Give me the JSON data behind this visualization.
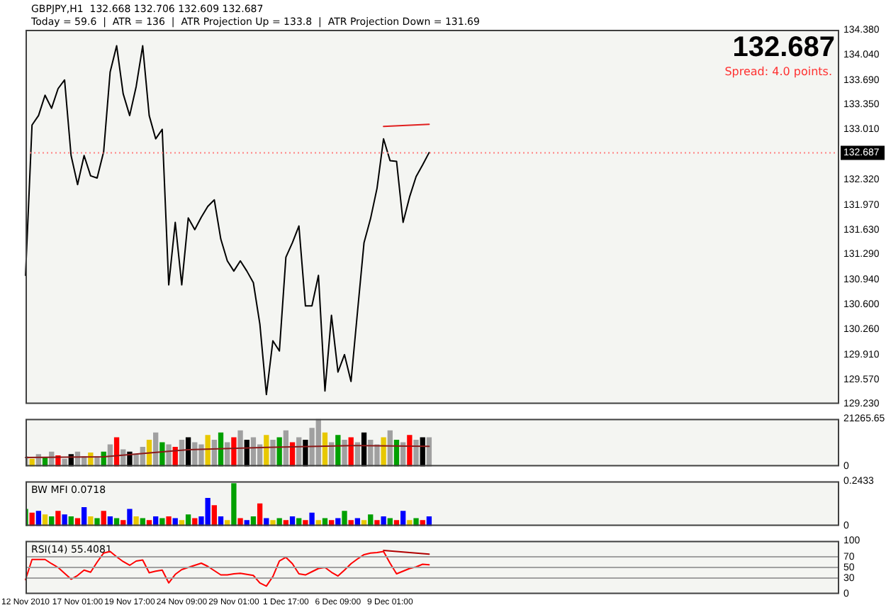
{
  "chart_data": [
    {
      "type": "line",
      "title": "GBPJPY,H1  132.668 132.706 132.609 132.687",
      "subtitle": "Today = 59.6  |  ATR = 136  |  ATR Projection Up = 133.8  |  ATR Projection Down = 131.69",
      "annotations": [
        "132.687",
        "Spread: 4.0 points."
      ],
      "categories": [
        null,
        null,
        null,
        null,
        null,
        null,
        null,
        null,
        null,
        null,
        null,
        null,
        null,
        null,
        null,
        null,
        null,
        null,
        null,
        null,
        null,
        null,
        null,
        null,
        null,
        null,
        null,
        null,
        null,
        null,
        null,
        null,
        null,
        null,
        null,
        null,
        null,
        null,
        null,
        null,
        null,
        null,
        null,
        null,
        null,
        null,
        null,
        null,
        null,
        null,
        null,
        null,
        null,
        null,
        null,
        null,
        null,
        null,
        null,
        null,
        null,
        null,
        null,
        null,
        null,
        null,
        null,
        null,
        null,
        null,
        null,
        null,
        null,
        null,
        null,
        null,
        null,
        null,
        null,
        null,
        null,
        null,
        null,
        null,
        null,
        null,
        null,
        null,
        null,
        null,
        null,
        null,
        null,
        null,
        null,
        null,
        null,
        null,
        null,
        null,
        null,
        null,
        null,
        null,
        null,
        null,
        null,
        null,
        null,
        null,
        null,
        null,
        null,
        null,
        null,
        null,
        null,
        null,
        null,
        null,
        null,
        null,
        null,
        null,
        null,
        null
      ],
      "ylim": [
        129.23,
        134.38
      ],
      "tick_labels": "y",
      "yticks": [
        {
          "value": 129.23,
          "label": "129.230"
        },
        {
          "value": 129.57,
          "label": "129.570"
        },
        {
          "value": 129.91,
          "label": "129.910"
        },
        {
          "value": 130.26,
          "label": "130.260"
        },
        {
          "value": 130.6,
          "label": "130.600"
        },
        {
          "value": 130.94,
          "label": "130.940"
        },
        {
          "value": 131.29,
          "label": "131.290"
        },
        {
          "value": 131.63,
          "label": "131.630"
        },
        {
          "value": 131.97,
          "label": "131.970"
        },
        {
          "value": 132.32,
          "label": "132.320"
        },
        {
          "value": 133.01,
          "label": "133.010"
        },
        {
          "value": 133.35,
          "label": "133.350"
        },
        {
          "value": 133.69,
          "label": "133.690"
        },
        {
          "value": 134.04,
          "label": "134.040"
        },
        {
          "value": 134.38,
          "label": "134.380"
        }
      ],
      "ref_lines": [
        {
          "axis": "y",
          "value": 132.687,
          "label": "132.687",
          "color": "#ff8080",
          "line_style": "dotted"
        }
      ],
      "series": [
        {
          "color": "#000000",
          "values": [
            131.0,
            133.07,
            133.2,
            133.48,
            133.3,
            133.57,
            133.69,
            132.65,
            132.25,
            132.65,
            132.37,
            132.34,
            132.7,
            133.8,
            134.16,
            133.5,
            133.2,
            133.6,
            134.16,
            133.2,
            132.88,
            133.01,
            130.87,
            131.73,
            130.87,
            131.79,
            131.63,
            131.8,
            131.95,
            132.04,
            131.5,
            131.2,
            131.06,
            131.2,
            131.06,
            130.9,
            130.33,
            129.36,
            130.1,
            129.96,
            131.25,
            131.45,
            131.68,
            130.58,
            130.58,
            131.0,
            129.41,
            130.45,
            129.67,
            129.91,
            129.54,
            130.5,
            131.45,
            131.78,
            132.2,
            132.88,
            132.58,
            132.57,
            131.73,
            132.08,
            132.36,
            132.52,
            132.69,
            null,
            null,
            null,
            null,
            null,
            null,
            null,
            null,
            null,
            null,
            null,
            null,
            null,
            null,
            null,
            null,
            null,
            null,
            null,
            null,
            null,
            null,
            null,
            null,
            null,
            null,
            null,
            null,
            null,
            null,
            null,
            null,
            null,
            null,
            null,
            null,
            null,
            null,
            null,
            null,
            null,
            null,
            null,
            null,
            null,
            null,
            null,
            null,
            null,
            null,
            null,
            null,
            null,
            null,
            null,
            null,
            null,
            null,
            null,
            null,
            null,
            null,
            null
          ]
        },
        {
          "type": "line",
          "color": "#e02020",
          "values": [
            null,
            null,
            null,
            null,
            null,
            null,
            null,
            null,
            null,
            null,
            null,
            null,
            null,
            null,
            null,
            null,
            null,
            null,
            null,
            null,
            null,
            null,
            null,
            null,
            null,
            null,
            null,
            null,
            null,
            null,
            null,
            null,
            null,
            null,
            null,
            null,
            null,
            null,
            null,
            null,
            null,
            null,
            null,
            null,
            null,
            null,
            null,
            null,
            null,
            null,
            null,
            null,
            null,
            null,
            null,
            133.05,
            null,
            null,
            null,
            null,
            null,
            null,
            133.08,
            null,
            null,
            null,
            null,
            null,
            null,
            null,
            null,
            null,
            null,
            null,
            null,
            null,
            null,
            null,
            null,
            null,
            null,
            null,
            null,
            null,
            null,
            null,
            null,
            null,
            null,
            null,
            null,
            null,
            null,
            null,
            null,
            null,
            null,
            null,
            null,
            null,
            null,
            null,
            null,
            null,
            null,
            null,
            null,
            null,
            null,
            null,
            null,
            null,
            null,
            null,
            null,
            null,
            null,
            null,
            null,
            null,
            null,
            null,
            null,
            null,
            null,
            null
          ]
        }
      ]
    },
    {
      "type": "bar",
      "categories": [
        null,
        null,
        null,
        null,
        null,
        null,
        null,
        null,
        null,
        null,
        null,
        null,
        null,
        null,
        null,
        null,
        null,
        null,
        null,
        null,
        null,
        null,
        null,
        null,
        null,
        null,
        null,
        null,
        null,
        null,
        null,
        null,
        null,
        null,
        null,
        null,
        null,
        null,
        null,
        null,
        null,
        null,
        null,
        null,
        null,
        null,
        null,
        null,
        null,
        null,
        null,
        null,
        null,
        null,
        null,
        null,
        null,
        null,
        null,
        null,
        null,
        null,
        null,
        null,
        null,
        null,
        null,
        null,
        null,
        null,
        null,
        null,
        null,
        null,
        null,
        null,
        null,
        null,
        null,
        null,
        null,
        null,
        null,
        null,
        null,
        null,
        null,
        null,
        null,
        null,
        null,
        null,
        null,
        null,
        null,
        null,
        null,
        null,
        null,
        null,
        null,
        null,
        null,
        null,
        null,
        null,
        null,
        null,
        null,
        null,
        null,
        null,
        null,
        null,
        null,
        null,
        null,
        null,
        null,
        null,
        null,
        null,
        null,
        null,
        null,
        null
      ],
      "ylim": [
        0,
        21265.65
      ],
      "tick_labels": "y",
      "yticks": [
        0,
        {
          "value": 21265.65,
          "label": "21265.65"
        }
      ],
      "series": [
        {
          "values": [
            4300,
            3200,
            5300,
            3800,
            6400,
            4700,
            3200,
            5300,
            6400,
            4300,
            6000,
            4300,
            6400,
            9600,
            12800,
            7400,
            6400,
            5300,
            8500,
            11700,
            14900,
            10600,
            9600,
            8500,
            11700,
            12800,
            10600,
            9600,
            13800,
            11700,
            14900,
            10600,
            12800,
            15900,
            11700,
            12800,
            9600,
            13800,
            11700,
            12800,
            15900,
            10600,
            12800,
            11700,
            17000,
            21000,
            14900,
            10600,
            13800,
            11700,
            12800,
            10600,
            14900,
            11700,
            9600,
            12800,
            15900,
            11700,
            10600,
            13800,
            11700,
            12800,
            12800,
            null,
            null,
            null,
            null,
            null,
            null,
            null,
            null,
            null,
            null,
            null,
            null,
            null,
            null,
            null,
            null,
            null,
            null,
            null,
            null,
            null,
            null,
            null,
            null,
            null,
            null,
            null,
            null,
            null,
            null,
            null,
            null,
            null,
            null,
            null,
            null,
            null,
            null,
            null,
            null,
            null,
            null,
            null,
            null,
            null,
            null,
            null,
            null,
            null,
            null,
            null,
            null,
            null,
            null,
            null,
            null,
            null,
            null,
            null,
            null,
            null,
            null,
            null
          ],
          "colors": [
            "#a0a0a0",
            "#e8c800",
            "#a0a0a0",
            "#00a000",
            "#a0a0a0",
            "#ff0000",
            "#a0a0a0",
            "#000000",
            "#a0a0a0",
            "#a0a0a0",
            "#e8c800",
            "#a0a0a0",
            "#00a000",
            "#a0a0a0",
            "#ff0000",
            "#a0a0a0",
            "#000000",
            "#a0a0a0",
            "#a0a0a0",
            "#e8c800",
            "#a0a0a0",
            "#00a000",
            "#a0a0a0",
            "#ff0000",
            "#a0a0a0",
            "#000000",
            "#a0a0a0",
            "#a0a0a0",
            "#e8c800",
            "#a0a0a0",
            "#00a000",
            "#a0a0a0",
            "#ff0000",
            "#a0a0a0",
            "#000000",
            "#a0a0a0",
            "#a0a0a0",
            "#e8c800",
            "#a0a0a0",
            "#00a000",
            "#a0a0a0",
            "#ff0000",
            "#a0a0a0",
            "#000000",
            "#a0a0a0",
            "#a0a0a0",
            "#e8c800",
            "#a0a0a0",
            "#00a000",
            "#a0a0a0",
            "#ff0000",
            "#a0a0a0",
            "#000000",
            "#a0a0a0",
            "#a0a0a0",
            "#e8c800",
            "#a0a0a0",
            "#00a000",
            "#a0a0a0",
            "#ff0000",
            "#a0a0a0",
            "#000000",
            "#a0a0a0",
            null,
            null,
            null,
            null,
            null,
            null,
            null,
            null,
            null,
            null,
            null,
            null,
            null,
            null,
            null,
            null,
            null,
            null,
            null,
            null,
            null,
            null,
            null,
            null,
            null,
            null,
            null,
            null,
            null,
            null,
            null,
            null,
            null,
            null,
            null,
            null,
            null,
            null,
            null,
            null,
            null,
            null,
            null,
            null,
            null,
            null,
            null,
            null,
            null,
            null,
            null,
            null,
            null,
            null,
            null,
            null,
            null,
            null,
            null,
            null,
            null,
            null,
            null
          ]
        },
        {
          "type": "line",
          "color": "#8b1a1a",
          "values": [
            4000,
            null,
            null,
            null,
            null,
            null,
            null,
            null,
            null,
            null,
            null,
            null,
            4300,
            null,
            null,
            null,
            null,
            null,
            null,
            null,
            null,
            null,
            null,
            null,
            null,
            7500,
            null,
            null,
            null,
            null,
            null,
            null,
            null,
            null,
            null,
            null,
            null,
            8500,
            null,
            null,
            null,
            null,
            null,
            null,
            null,
            null,
            null,
            null,
            null,
            null,
            9300,
            null,
            null,
            null,
            null,
            null,
            null,
            null,
            null,
            null,
            null,
            null,
            9000,
            null,
            null,
            null,
            null,
            null,
            null,
            null,
            null,
            null,
            null,
            null,
            null,
            null,
            null,
            null,
            null,
            null,
            null,
            null,
            null,
            null,
            null,
            null,
            null,
            null,
            null,
            null,
            null,
            null,
            null,
            null,
            null,
            null,
            null,
            null,
            null,
            null,
            null,
            null,
            null,
            null,
            null,
            null,
            null,
            null,
            null,
            null,
            null,
            null,
            null,
            null,
            null,
            null,
            null,
            null,
            null,
            null,
            null,
            null,
            null,
            null,
            null,
            null
          ]
        }
      ]
    },
    {
      "type": "bar",
      "title": "BW MFI 0.0718",
      "categories": [
        null,
        null,
        null,
        null,
        null,
        null,
        null,
        null,
        null,
        null,
        null,
        null,
        null,
        null,
        null,
        null,
        null,
        null,
        null,
        null,
        null,
        null,
        null,
        null,
        null,
        null,
        null,
        null,
        null,
        null,
        null,
        null,
        null,
        null,
        null,
        null,
        null,
        null,
        null,
        null,
        null,
        null,
        null,
        null,
        null,
        null,
        null,
        null,
        null,
        null,
        null,
        null,
        null,
        null,
        null,
        null,
        null,
        null,
        null,
        null,
        null,
        null,
        null,
        null,
        null,
        null,
        null,
        null,
        null,
        null,
        null,
        null,
        null,
        null,
        null,
        null,
        null,
        null,
        null,
        null,
        null,
        null,
        null,
        null,
        null,
        null,
        null,
        null,
        null,
        null,
        null,
        null,
        null,
        null,
        null,
        null,
        null,
        null,
        null,
        null,
        null,
        null,
        null,
        null,
        null,
        null,
        null,
        null,
        null,
        null,
        null,
        null,
        null,
        null,
        null,
        null,
        null,
        null,
        null,
        null,
        null,
        null,
        null,
        null,
        null,
        null
      ],
      "ylim": [
        0,
        0.2433
      ],
      "tick_labels": "y",
      "yticks": [
        0,
        0.2433
      ],
      "series": [
        {
          "values": [
            0.09,
            0.07,
            0.08,
            0.06,
            0.05,
            0.08,
            0.06,
            0.05,
            0.04,
            0.1,
            0.05,
            0.04,
            0.08,
            0.05,
            0.04,
            0.03,
            0.09,
            0.05,
            0.04,
            0.03,
            0.05,
            0.04,
            0.05,
            0.04,
            0.03,
            0.06,
            0.04,
            0.05,
            0.15,
            0.11,
            0.05,
            0.03,
            0.23,
            0.04,
            0.03,
            0.05,
            0.12,
            0.04,
            0.03,
            0.04,
            0.03,
            0.05,
            0.04,
            0.03,
            0.07,
            0.03,
            0.04,
            0.03,
            0.04,
            0.08,
            0.03,
            0.04,
            0.03,
            0.06,
            0.03,
            0.05,
            0.04,
            0.03,
            0.08,
            0.03,
            0.04,
            0.03,
            0.05,
            null,
            null,
            null,
            null,
            null,
            null,
            null,
            null,
            null,
            null,
            null,
            null,
            null,
            null,
            null,
            null,
            null,
            null,
            null,
            null,
            null,
            null,
            null,
            null,
            null,
            null,
            null,
            null,
            null,
            null,
            null,
            null,
            null,
            null,
            null,
            null,
            null,
            null,
            null,
            null,
            null,
            null,
            null,
            null,
            null,
            null,
            null,
            null,
            null,
            null,
            null,
            null,
            null,
            null,
            null,
            null,
            null,
            null,
            null,
            null,
            null,
            null,
            null
          ],
          "colors": [
            "#00a000",
            "#ff0000",
            "#0000ff",
            "#e8c800",
            "#00a000",
            "#ff0000",
            "#0000ff",
            "#00a000",
            "#ff0000",
            "#0000ff",
            "#e8c800",
            "#00a000",
            "#ff0000",
            "#0000ff",
            "#00a000",
            "#ff0000",
            "#0000ff",
            "#e8c800",
            "#00a000",
            "#ff0000",
            "#0000ff",
            "#00a000",
            "#ff0000",
            "#0000ff",
            "#e8c800",
            "#00a000",
            "#ff0000",
            "#0000ff",
            "#0000ff",
            "#ff0000",
            "#0000ff",
            "#e8c800",
            "#00a000",
            "#ff0000",
            "#0000ff",
            "#00a000",
            "#ff0000",
            "#0000ff",
            "#e8c800",
            "#00a000",
            "#ff0000",
            "#0000ff",
            "#00a000",
            "#ff0000",
            "#0000ff",
            "#e8c800",
            "#00a000",
            "#ff0000",
            "#0000ff",
            "#00a000",
            "#ff0000",
            "#0000ff",
            "#e8c800",
            "#00a000",
            "#ff0000",
            "#0000ff",
            "#00a000",
            "#ff0000",
            "#0000ff",
            "#e8c800",
            "#00a000",
            "#ff0000",
            "#0000ff",
            null,
            null,
            null,
            null,
            null,
            null,
            null,
            null,
            null,
            null,
            null,
            null,
            null,
            null,
            null,
            null,
            null,
            null,
            null,
            null,
            null,
            null,
            null,
            null,
            null,
            null,
            null,
            null,
            null,
            null,
            null,
            null,
            null,
            null,
            null,
            null,
            null,
            null,
            null,
            null,
            null,
            null,
            null,
            null,
            null,
            null,
            null,
            null,
            null,
            null,
            null,
            null,
            null,
            null,
            null,
            null,
            null,
            null,
            null,
            null,
            null,
            null,
            null
          ]
        }
      ]
    },
    {
      "type": "line",
      "title": "RSI(14) 55.4081",
      "categories": [
        "12 Nov 2010",
        null,
        null,
        null,
        null,
        null,
        null,
        null,
        "17 Nov 01:00",
        null,
        null,
        null,
        null,
        null,
        null,
        null,
        "19 Nov 17:00",
        null,
        null,
        null,
        null,
        null,
        null,
        null,
        "24 Nov 09:00",
        null,
        null,
        null,
        null,
        null,
        null,
        null,
        "29 Nov 01:00",
        null,
        null,
        null,
        null,
        null,
        null,
        null,
        "1 Dec 17:00",
        null,
        null,
        null,
        null,
        null,
        null,
        null,
        "6 Dec 09:00",
        null,
        null,
        null,
        null,
        null,
        null,
        null,
        "9 Dec 01:00",
        null,
        null,
        null,
        null,
        null,
        null,
        null,
        null,
        null,
        null,
        null,
        null,
        null,
        null,
        null,
        null,
        null,
        null,
        null,
        null,
        null,
        null,
        null,
        null,
        null,
        null,
        null,
        null,
        null,
        null,
        null,
        null,
        null,
        null,
        null,
        null,
        null,
        null,
        null,
        null,
        null,
        null,
        null,
        null,
        null,
        null,
        null,
        null,
        null,
        null,
        null,
        null,
        null,
        null,
        null,
        null,
        null,
        null,
        null,
        null,
        null,
        null,
        null,
        null,
        null,
        null,
        null,
        null,
        null
      ],
      "ylim": [
        0,
        100
      ],
      "yticks": [
        0,
        30,
        50,
        70,
        100
      ],
      "ref_lines": [
        {
          "axis": "y",
          "value": 30,
          "color": "#a0a0a0"
        },
        {
          "axis": "y",
          "value": 50,
          "color": "#a0a0a0"
        },
        {
          "axis": "y",
          "value": 70,
          "color": "#a0a0a0"
        }
      ],
      "series": [
        {
          "color": "#ff0000",
          "values": [
            27,
            65,
            65,
            65,
            57,
            50,
            39,
            28,
            35,
            45,
            41,
            60,
            77,
            80,
            70,
            61,
            54,
            62,
            64,
            40,
            43,
            45,
            21,
            37,
            46,
            50,
            54,
            58,
            52,
            44,
            36,
            36,
            38,
            39,
            37,
            35,
            21,
            15,
            33,
            62,
            69,
            57,
            38,
            36,
            42,
            48,
            50,
            41,
            34,
            45,
            57,
            66,
            74,
            77,
            78,
            80,
            58,
            38,
            43,
            48,
            51,
            56,
            55,
            null,
            null,
            null,
            null,
            null,
            null,
            null,
            null,
            null,
            null,
            null,
            null,
            null,
            null,
            null,
            null,
            null,
            null,
            null,
            null,
            null,
            null,
            null,
            null,
            null,
            null,
            null,
            null,
            null,
            null,
            null,
            null,
            null,
            null,
            null,
            null,
            null,
            null,
            null,
            null,
            null,
            null,
            null,
            null,
            null,
            null,
            null,
            null,
            null,
            null,
            null,
            null,
            null,
            null,
            null,
            null,
            null,
            null,
            null,
            null,
            null,
            null,
            null
          ]
        },
        {
          "type": "line",
          "color": "#b00000",
          "values": [
            null,
            null,
            null,
            null,
            null,
            null,
            null,
            null,
            null,
            null,
            null,
            null,
            null,
            null,
            null,
            null,
            null,
            null,
            null,
            null,
            null,
            null,
            null,
            null,
            null,
            null,
            null,
            null,
            null,
            null,
            null,
            null,
            null,
            null,
            null,
            null,
            null,
            null,
            null,
            null,
            null,
            null,
            null,
            null,
            null,
            null,
            null,
            null,
            null,
            null,
            null,
            null,
            null,
            null,
            null,
            82,
            null,
            null,
            null,
            null,
            null,
            null,
            75,
            null,
            null,
            null,
            null,
            null,
            null,
            null,
            null,
            null,
            null,
            null,
            null,
            null,
            null,
            null,
            null,
            null,
            null,
            null,
            null,
            null,
            null,
            null,
            null,
            null,
            null,
            null,
            null,
            null,
            null,
            null,
            null,
            null,
            null,
            null,
            null,
            null,
            null,
            null,
            null,
            null,
            null,
            null,
            null,
            null,
            null,
            null,
            null,
            null,
            null,
            null,
            null,
            null,
            null,
            null,
            null,
            null,
            null,
            null,
            null,
            null,
            null,
            null
          ]
        }
      ]
    }
  ]
}
